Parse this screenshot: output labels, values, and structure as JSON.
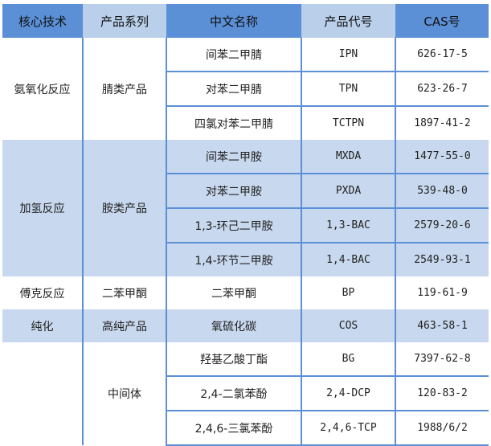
{
  "headers": [
    "核心技术",
    "产品系列",
    "中文名称",
    "产品代号",
    "CAS号"
  ],
  "groups": [
    {
      "tech": "氨氧化反应",
      "series": "腈类产品",
      "blue": false,
      "items": [
        {
          "name": "间苯二甲腈",
          "code": "IPN",
          "cas": "626-17-5"
        },
        {
          "name": "对苯二甲腈",
          "code": "TPN",
          "cas": "623-26-7"
        },
        {
          "name": "四氯对苯二甲腈",
          "code": "TCTPN",
          "cas": "1897-41-2"
        }
      ]
    },
    {
      "tech": "加氢反应",
      "series": "胺类产品",
      "blue": true,
      "items": [
        {
          "name": "间苯二甲胺",
          "code": "MXDA",
          "cas": "1477-55-0"
        },
        {
          "name": "对苯二甲胺",
          "code": "PXDA",
          "cas": "539-48-0"
        },
        {
          "name": "1,3-环己二甲胺",
          "code": "1,3-BAC",
          "cas": "2579-20-6"
        },
        {
          "name": "1,4-环节二甲胺",
          "code": "1,4-BAC",
          "cas": "2549-93-1"
        }
      ]
    },
    {
      "tech": "傅克反应",
      "series": "二苯甲酮",
      "blue": false,
      "items": [
        {
          "name": "二苯甲酮",
          "code": "BP",
          "cas": "119-61-9"
        }
      ]
    },
    {
      "tech": "纯化",
      "series": "高纯产品",
      "blue": true,
      "items": [
        {
          "name": "氧硫化碳",
          "code": "COS",
          "cas": "463-58-1"
        }
      ]
    },
    {
      "tech": "",
      "series": "中间体",
      "blue": false,
      "items": [
        {
          "name": "羟基乙酸丁酯",
          "code": "BG",
          "cas": "7397-62-8"
        },
        {
          "name": "2,4-二氯苯酚",
          "code": "2,4-DCP",
          "cas": "120-83-2"
        },
        {
          "name": "2,4,6-三氯苯酚",
          "code": "2,4,6-TCP",
          "cas": "1988/6/2"
        }
      ]
    }
  ]
}
